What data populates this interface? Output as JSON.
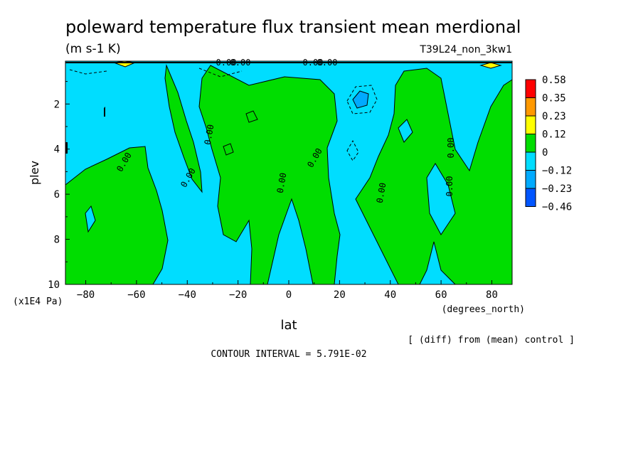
{
  "chart_data": {
    "type": "heatmap",
    "title": "poleward temperature flux transient mean merdional",
    "units": "(m s-1 K)",
    "run_label": "T39L24_non_3kw1",
    "xlabel": "lat",
    "x_unit": "(degrees_north)",
    "ylabel": "plev",
    "y_unit": "(x1E4 Pa)",
    "x_ticks": [
      -80,
      -60,
      -40,
      -20,
      0,
      20,
      40,
      60,
      80
    ],
    "y_ticks": [
      2,
      4,
      6,
      8,
      10
    ],
    "xlim": [
      -88,
      88
    ],
    "ylim": [
      10,
      0.1
    ],
    "grid": false,
    "legend": "right",
    "colorbar": {
      "levels": [
        "0.58",
        "0.35",
        "0.23",
        "0.12",
        "0",
        "−0.12",
        "−0.23",
        "−0.46"
      ],
      "colors": [
        "#ff0000",
        "#ff9900",
        "#ffff00",
        "#00dd00",
        "#00ddff",
        "#00aaff",
        "#0055ff"
      ]
    },
    "contour_labels": [
      "0.00",
      "0.00",
      "0.00",
      "0.00",
      "0.00",
      "0.00",
      "0.00",
      "0.00",
      "0.00",
      "0.00",
      "0.00",
      "0.00"
    ],
    "comparison_note": "[ (diff) from (mean) control ]",
    "contour_interval": "CONTOUR INTERVAL = 5.791E-02"
  },
  "colors": {
    "positive_fill": "#00dd00",
    "negative_fill": "#00ddff",
    "strong_negative_fill": "#00aaff",
    "strong_positive_fill": "#ffff00"
  }
}
